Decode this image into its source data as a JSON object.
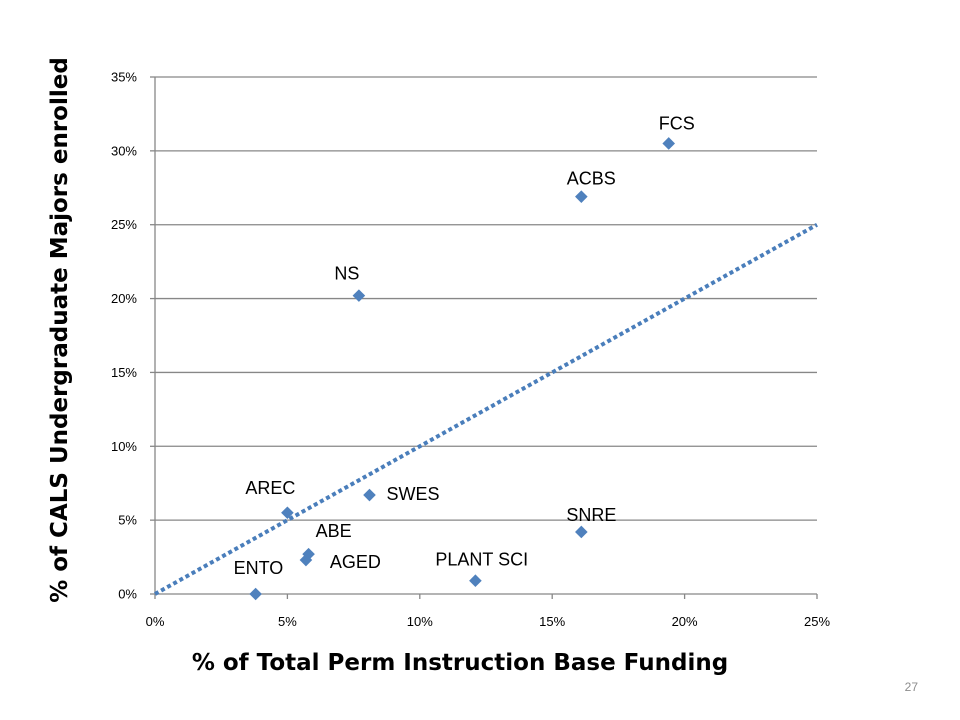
{
  "chart_data": {
    "type": "scatter",
    "title": "",
    "xlabel": "% of Total Perm Instruction Base Funding",
    "ylabel": "% of CALS  Undergraduate Majors enrolled",
    "xlim": [
      0,
      25
    ],
    "ylim": [
      0,
      35
    ],
    "x_ticks": [
      "0%",
      "5%",
      "10%",
      "15%",
      "20%",
      "25%"
    ],
    "y_ticks": [
      "0%",
      "5%",
      "10%",
      "15%",
      "20%",
      "25%",
      "30%",
      "35%"
    ],
    "grid": "horizontal",
    "legend": "none",
    "marker_color": "#4f81bd",
    "trendline": {
      "style": "dotted",
      "color": "#4a7ebb",
      "from": [
        0,
        0
      ],
      "to": [
        25,
        25
      ]
    },
    "points": [
      {
        "label": "FCS",
        "x": 19.4,
        "y": 30.5
      },
      {
        "label": "ACBS",
        "x": 16.1,
        "y": 26.9
      },
      {
        "label": "NS",
        "x": 7.7,
        "y": 20.2
      },
      {
        "label": "SWES",
        "x": 8.1,
        "y": 6.7
      },
      {
        "label": "AREC",
        "x": 5.0,
        "y": 5.5
      },
      {
        "label": "SNRE",
        "x": 16.1,
        "y": 4.2
      },
      {
        "label": "ABE",
        "x": 5.8,
        "y": 2.7
      },
      {
        "label": "AGED",
        "x": 5.7,
        "y": 2.3
      },
      {
        "label": "PLANT SCI",
        "x": 12.1,
        "y": 0.9
      },
      {
        "label": "ENTO",
        "x": 3.8,
        "y": 0.0
      }
    ]
  },
  "page_number": "27"
}
